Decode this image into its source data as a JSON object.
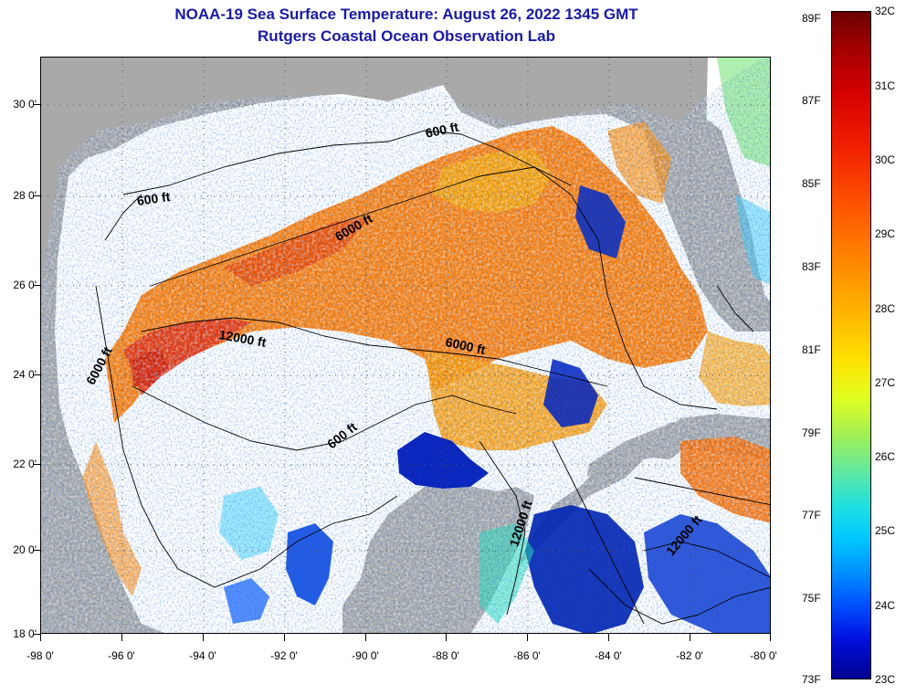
{
  "titles": {
    "line1": "NOAA-19 Sea Surface Temperature:  August 26, 2022 1345 GMT",
    "line2": "Rutgers Coastal Ocean Observation Lab"
  },
  "axes": {
    "longitude_labels": [
      "-98 0'",
      "-96 0'",
      "-94 0'",
      "-92 0'",
      "-90 0'",
      "-88 0'",
      "-86 0'",
      "-84 0'",
      "-82 0'",
      "-80 0'"
    ],
    "latitude_labels": [
      "30 0'",
      "28 0'",
      "26 0'",
      "24 0'",
      "22 0'",
      "20 0'",
      "18 0'"
    ],
    "lon_range": [
      -98,
      -80
    ],
    "lat_range": [
      18,
      31
    ]
  },
  "contour_labels": {
    "c1": "600 ft",
    "c2": "600 ft",
    "c3": "6000 ft",
    "c4": "12000 ft",
    "c5": "6000 ft",
    "c6": "6000 ft",
    "c7": "600 ft",
    "c8": "12000 ft",
    "c9": "12000 ft"
  },
  "colorbar": {
    "fahrenheit": [
      "89F",
      "87F",
      "85F",
      "83F",
      "81F",
      "79F",
      "77F",
      "75F",
      "73F"
    ],
    "celsius": [
      "32C",
      "31C",
      "30C",
      "29C",
      "28C",
      "27C",
      "26C",
      "25C",
      "24C",
      "23C"
    ],
    "range_f": [
      73,
      89.6
    ],
    "range_c": [
      23,
      32
    ]
  },
  "colors": {
    "land": "#a9a9a9",
    "cloud_mask": "#ffffff",
    "warm": "#ff6a00",
    "hot": "#e82800",
    "cool": "#0020c0",
    "title": "#1a1aa8"
  }
}
